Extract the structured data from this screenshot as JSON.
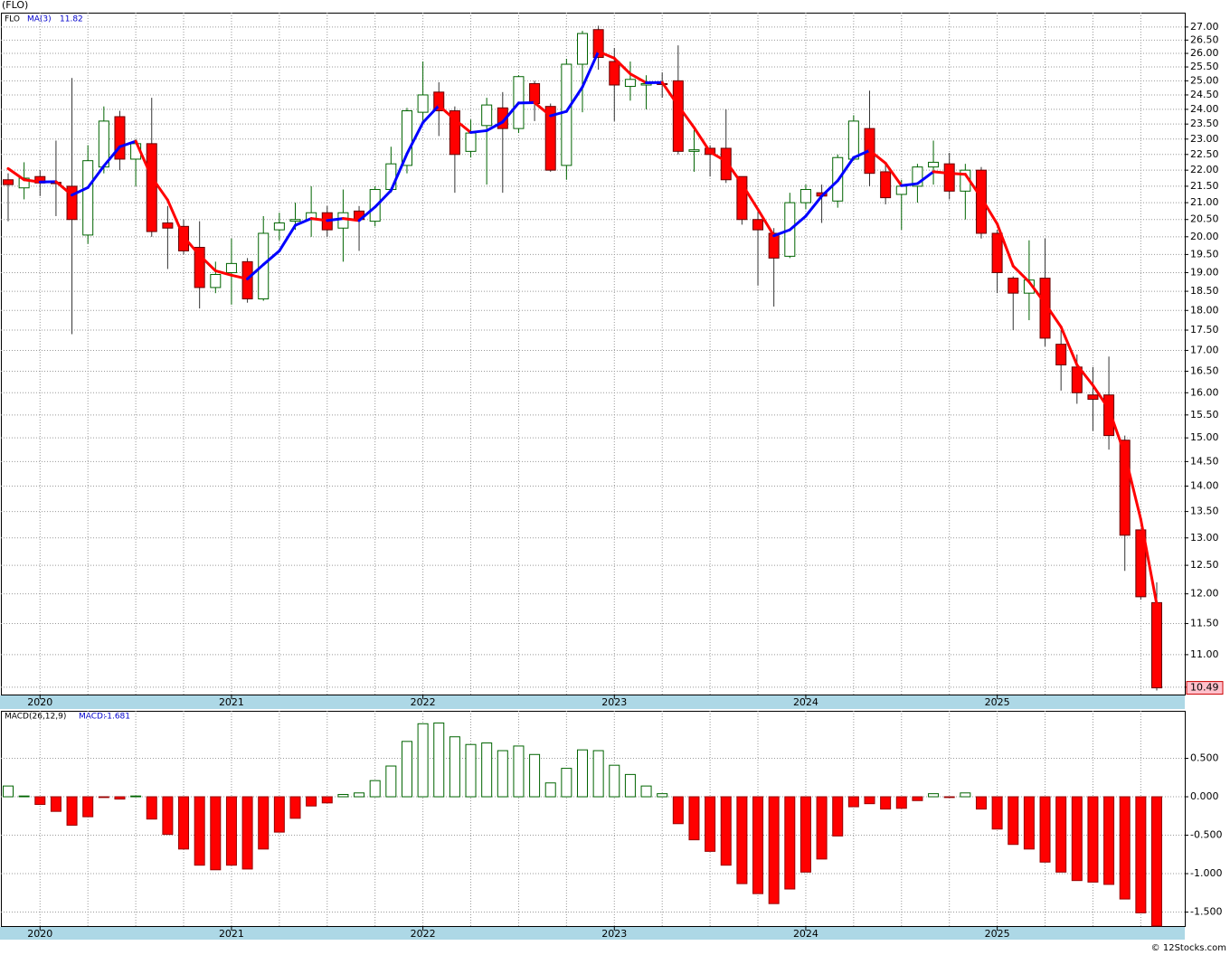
{
  "chart_data": [
    {
      "type": "candlestick",
      "title": "(FLO)",
      "symbol": "FLO",
      "ma_name": "MA(3)",
      "log": true,
      "grid": true,
      "up_color": "#006400",
      "down_color": "#ff0000",
      "ma_up_color": "#0000ff",
      "ma_down_color": "#ff0000",
      "open": [
        21.7,
        21.45,
        21.8,
        21.62,
        21.5,
        20.05,
        22.1,
        23.75,
        22.35,
        22.85,
        20.4,
        20.3,
        19.7,
        18.6,
        19.0,
        19.3,
        18.3,
        20.2,
        20.45,
        20.5,
        20.7,
        20.25,
        20.75,
        20.45,
        21.4,
        22.15,
        23.9,
        24.6,
        23.95,
        22.6,
        23.45,
        24.05,
        23.35,
        24.9,
        24.1,
        22.15,
        25.6,
        26.9,
        25.7,
        24.8,
        24.85,
        24.9,
        25.0,
        22.6,
        22.7,
        22.7,
        21.8,
        20.5,
        20.1,
        19.45,
        21.0,
        21.3,
        21.05,
        22.35,
        23.35,
        21.95,
        21.25,
        21.5,
        22.1,
        22.2,
        21.35,
        22.0,
        20.1,
        18.85,
        18.45,
        18.85,
        17.15,
        16.6,
        15.95,
        15.95,
        14.95,
        13.15,
        11.85
      ],
      "high": [
        21.9,
        22.25,
        22.0,
        22.95,
        25.1,
        22.8,
        24.1,
        23.95,
        23.0,
        24.4,
        20.9,
        20.5,
        20.45,
        19.3,
        19.95,
        19.4,
        20.6,
        20.7,
        21.0,
        21.5,
        20.9,
        21.4,
        20.9,
        21.5,
        22.75,
        24.05,
        25.7,
        24.95,
        24.1,
        23.65,
        24.4,
        24.6,
        25.2,
        25.0,
        24.2,
        25.8,
        26.85,
        27.05,
        26.2,
        25.7,
        25.2,
        25.3,
        26.3,
        23.3,
        22.8,
        24.0,
        21.8,
        20.75,
        20.25,
        21.3,
        21.55,
        21.55,
        22.5,
        23.8,
        24.65,
        22.25,
        21.7,
        22.2,
        22.95,
        22.55,
        22.2,
        22.1,
        20.2,
        18.9,
        19.9,
        19.95,
        17.5,
        16.9,
        16.6,
        16.85,
        15.05,
        13.15,
        12.2
      ],
      "low": [
        20.45,
        21.1,
        21.2,
        20.6,
        17.4,
        19.8,
        21.9,
        22.0,
        21.5,
        20.0,
        19.1,
        19.5,
        18.05,
        18.45,
        18.15,
        18.2,
        18.25,
        19.9,
        20.2,
        20.0,
        20.0,
        19.3,
        19.6,
        20.3,
        21.3,
        21.9,
        23.6,
        23.1,
        21.3,
        22.4,
        21.55,
        21.3,
        23.2,
        23.6,
        21.95,
        21.7,
        23.9,
        25.4,
        23.6,
        24.3,
        24.0,
        24.4,
        22.5,
        21.95,
        21.8,
        21.6,
        20.35,
        18.65,
        18.1,
        19.4,
        20.8,
        20.4,
        20.85,
        22.3,
        21.5,
        20.95,
        20.2,
        21.0,
        21.55,
        21.1,
        20.5,
        19.95,
        18.45,
        17.5,
        17.75,
        17.1,
        16.05,
        15.75,
        15.15,
        14.75,
        12.4,
        11.9,
        10.45
      ],
      "close": [
        21.55,
        21.75,
        21.6,
        21.58,
        20.5,
        22.3,
        23.6,
        22.35,
        22.85,
        20.15,
        20.25,
        19.6,
        18.6,
        18.95,
        19.25,
        18.3,
        20.1,
        20.4,
        20.5,
        20.7,
        20.2,
        20.7,
        20.5,
        21.4,
        22.2,
        23.95,
        24.5,
        23.95,
        22.5,
        23.2,
        24.15,
        23.35,
        25.15,
        24.2,
        22.0,
        25.6,
        26.75,
        25.85,
        24.85,
        25.05,
        24.9,
        24.88,
        22.6,
        22.65,
        22.5,
        21.7,
        20.5,
        20.2,
        19.4,
        21.0,
        21.4,
        21.2,
        22.4,
        23.6,
        21.9,
        21.15,
        21.5,
        22.1,
        22.25,
        21.35,
        22.0,
        20.1,
        19.0,
        18.45,
        18.8,
        17.3,
        16.65,
        16.0,
        15.85,
        15.05,
        13.05,
        11.95,
        10.49
      ],
      "ma": [
        22.05,
        21.7,
        21.63,
        21.64,
        21.23,
        21.46,
        22.13,
        22.75,
        22.93,
        21.78,
        21.08,
        20.0,
        19.48,
        19.05,
        18.93,
        18.83,
        19.22,
        19.6,
        20.33,
        20.53,
        20.47,
        20.53,
        20.47,
        20.87,
        21.37,
        22.52,
        23.55,
        24.13,
        23.65,
        23.22,
        23.28,
        23.57,
        24.22,
        24.23,
        23.78,
        23.93,
        24.78,
        26.07,
        25.82,
        25.25,
        24.93,
        24.94,
        24.13,
        23.38,
        22.58,
        22.28,
        21.57,
        20.8,
        20.03,
        20.2,
        20.6,
        21.2,
        21.67,
        22.4,
        22.63,
        22.22,
        21.52,
        21.58,
        21.95,
        21.9,
        21.87,
        21.15,
        20.37,
        19.18,
        18.75,
        18.18,
        17.58,
        16.65,
        16.17,
        15.63,
        14.65,
        13.35,
        11.82
      ],
      "ylim": [
        10.39,
        27.56
      ],
      "yticks": [
        {
          "value": 27,
          "label": "27.00"
        },
        {
          "value": 26.5,
          "label": "26.50"
        },
        {
          "value": 26,
          "label": "26.00"
        },
        {
          "value": 25.5,
          "label": "25.50"
        },
        {
          "value": 25,
          "label": "25.00"
        },
        {
          "value": 24.5,
          "label": "24.50"
        },
        {
          "value": 24,
          "label": "24.00"
        },
        {
          "value": 23.5,
          "label": "23.50"
        },
        {
          "value": 23,
          "label": "23.00"
        },
        {
          "value": 22.5,
          "label": "22.50"
        },
        {
          "value": 22,
          "label": "22.00"
        },
        {
          "value": 21.5,
          "label": "21.50"
        },
        {
          "value": 21,
          "label": "21.00"
        },
        {
          "value": 20.5,
          "label": "20.50"
        },
        {
          "value": 20,
          "label": "20.00"
        },
        {
          "value": 19.5,
          "label": "19.50"
        },
        {
          "value": 19,
          "label": "19.00"
        },
        {
          "value": 18.5,
          "label": "18.50"
        },
        {
          "value": 18,
          "label": "18.00"
        },
        {
          "value": 17.5,
          "label": "17.50"
        },
        {
          "value": 17,
          "label": "17.00"
        },
        {
          "value": 16.5,
          "label": "16.50"
        },
        {
          "value": 16,
          "label": "16.00"
        },
        {
          "value": 15.5,
          "label": "15.50"
        },
        {
          "value": 15,
          "label": "15.00"
        },
        {
          "value": 14.5,
          "label": "14.50"
        },
        {
          "value": 14,
          "label": "14.00"
        },
        {
          "value": 13.5,
          "label": "13.50"
        },
        {
          "value": 13,
          "label": "13.00"
        },
        {
          "value": 12.5,
          "label": "12.50"
        },
        {
          "value": 12,
          "label": "12.00"
        },
        {
          "value": 11.5,
          "label": "11.50"
        },
        {
          "value": 11,
          "label": "11.00"
        },
        {
          "value": 10.5,
          "label": "10.50"
        }
      ],
      "xticks": [
        {
          "value": 2,
          "label": "2020"
        },
        {
          "value": 14,
          "label": "2021"
        },
        {
          "value": 26,
          "label": "2022"
        },
        {
          "value": 38,
          "label": "2023"
        },
        {
          "value": 50,
          "label": "2024"
        },
        {
          "value": 62,
          "label": "2025"
        }
      ]
    },
    {
      "type": "macd",
      "name": "MACD(26,12,9)",
      "value_prefix": "MACD:",
      "up_color": "#006400",
      "down_color": "#ff0000",
      "values": [
        0.14,
        0.01,
        -0.1,
        -0.19,
        -0.37,
        -0.26,
        -0.01,
        -0.03,
        0.01,
        -0.29,
        -0.49,
        -0.68,
        -0.89,
        -0.95,
        -0.89,
        -0.94,
        -0.68,
        -0.46,
        -0.28,
        -0.12,
        -0.08,
        0.03,
        0.05,
        0.21,
        0.4,
        0.72,
        0.95,
        0.96,
        0.78,
        0.68,
        0.7,
        0.6,
        0.66,
        0.55,
        0.18,
        0.37,
        0.61,
        0.6,
        0.41,
        0.29,
        0.14,
        0.04,
        -0.35,
        -0.56,
        -0.71,
        -0.89,
        -1.13,
        -1.26,
        -1.39,
        -1.2,
        -0.98,
        -0.81,
        -0.51,
        -0.13,
        -0.09,
        -0.16,
        -0.15,
        -0.05,
        0.04,
        -0.01,
        0.05,
        -0.16,
        -0.42,
        -0.62,
        -0.68,
        -0.85,
        -0.98,
        -1.09,
        -1.11,
        -1.14,
        -1.33,
        -1.51,
        -1.681
      ],
      "ylim": [
        -1.682,
        1.118
      ],
      "yticks": [
        {
          "value": 0.5,
          "label": "0.500"
        },
        {
          "value": 0,
          "label": "0.000"
        },
        {
          "value": -0.5,
          "label": "-0.500"
        },
        {
          "value": -1,
          "label": "-1.000"
        },
        {
          "value": -1.5,
          "label": "-1.500"
        }
      ],
      "xticks": [
        {
          "value": 2,
          "label": "2020"
        },
        {
          "value": 14,
          "label": "2021"
        },
        {
          "value": 26,
          "label": "2022"
        },
        {
          "value": 38,
          "label": "2023"
        },
        {
          "value": 50,
          "label": "2024"
        },
        {
          "value": 62,
          "label": "2025"
        }
      ]
    }
  ],
  "footer": "© 12Stocks.com"
}
